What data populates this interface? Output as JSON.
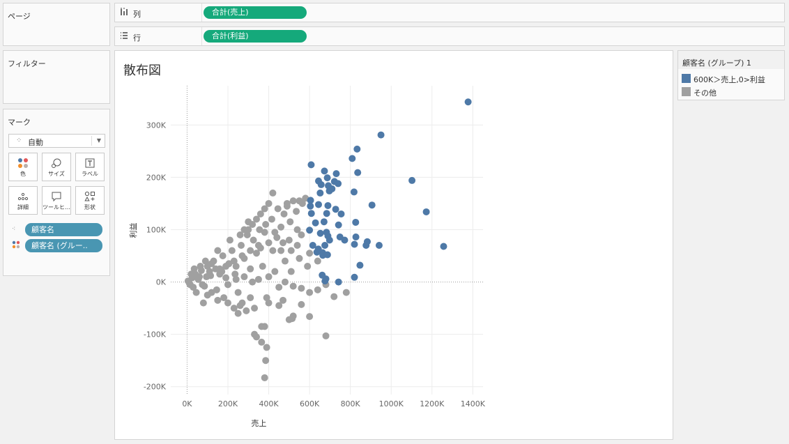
{
  "pages": {
    "title": "ページ"
  },
  "filters": {
    "title": "フィルター"
  },
  "marks": {
    "title": "マーク",
    "type": {
      "label": "自動",
      "icon": "mark-type-icon"
    },
    "buttons": [
      {
        "label": "色",
        "icon": "color-icon"
      },
      {
        "label": "サイズ",
        "icon": "size-icon"
      },
      {
        "label": "ラベル",
        "icon": "label-icon"
      },
      {
        "label": "詳細",
        "icon": "detail-icon"
      },
      {
        "label": "ツールヒ…",
        "icon": "tooltip-icon"
      },
      {
        "label": "形状",
        "icon": "shape-icon"
      }
    ],
    "fields": [
      {
        "label": "顧客名",
        "icon": "detail-icon"
      },
      {
        "label": "顧客名 (グルー..",
        "icon": "color-icon"
      }
    ]
  },
  "shelves": {
    "columns": {
      "label": "列",
      "icon": "columns-icon",
      "pill": "合計(売上)"
    },
    "rows": {
      "label": "行",
      "icon": "rows-icon",
      "pill": "合計(利益)"
    }
  },
  "sheet": {
    "title": "散布図"
  },
  "legend": {
    "title": "顧客名 (グループ) 1",
    "items": [
      {
        "label": "600K＞売上,0>利益",
        "color": "#4e79a7"
      },
      {
        "label": "その他",
        "color": "#a0a0a0"
      }
    ]
  },
  "colors": {
    "accent": "#15a97b",
    "field_pill": "#4996b2",
    "group_blue": "#4e79a7",
    "group_gray": "#a0a0a0"
  },
  "chart_data": {
    "type": "scatter",
    "xlabel": "売上",
    "ylabel": "利益",
    "xlim": [
      -80000,
      1450000
    ],
    "ylim": [
      -215000,
      375000
    ],
    "x_ticks": [
      "0K",
      "200K",
      "400K",
      "600K",
      "800K",
      "1000K",
      "1200K",
      "1400K"
    ],
    "y_ticks": [
      "300K",
      "200K",
      "100K",
      "0K",
      "-100K",
      "-200K"
    ],
    "grid": true,
    "series": [
      {
        "name": "600K＞売上,0>利益",
        "color": "#4e79a7",
        "points": [
          [
            1377000,
            344000
          ],
          [
            950000,
            281000
          ],
          [
            1102000,
            194000
          ],
          [
            1172000,
            134000
          ],
          [
            1257000,
            68000
          ],
          [
            833000,
            254000
          ],
          [
            809000,
            236000
          ],
          [
            836000,
            209000
          ],
          [
            608000,
            224000
          ],
          [
            673000,
            212000
          ],
          [
            731000,
            207000
          ],
          [
            687000,
            199000
          ],
          [
            644000,
            193000
          ],
          [
            657000,
            186000
          ],
          [
            722000,
            192000
          ],
          [
            692000,
            184000
          ],
          [
            740000,
            188000
          ],
          [
            710000,
            178000
          ],
          [
            697000,
            174000
          ],
          [
            818000,
            172000
          ],
          [
            652000,
            170000
          ],
          [
            605000,
            156000
          ],
          [
            644000,
            148000
          ],
          [
            604000,
            145000
          ],
          [
            690000,
            146000
          ],
          [
            728000,
            139000
          ],
          [
            906000,
            147000
          ],
          [
            609000,
            131000
          ],
          [
            684000,
            131000
          ],
          [
            755000,
            130000
          ],
          [
            671000,
            115000
          ],
          [
            629000,
            113000
          ],
          [
            742000,
            109000
          ],
          [
            826000,
            114000
          ],
          [
            600000,
            99000
          ],
          [
            683000,
            95000
          ],
          [
            653000,
            93000
          ],
          [
            690000,
            88000
          ],
          [
            749000,
            86000
          ],
          [
            827000,
            86000
          ],
          [
            698000,
            80000
          ],
          [
            772000,
            80000
          ],
          [
            883000,
            77000
          ],
          [
            616000,
            70000
          ],
          [
            675000,
            70000
          ],
          [
            820000,
            72000
          ],
          [
            941000,
            70000
          ],
          [
            877000,
            70000
          ],
          [
            643000,
            63000
          ],
          [
            664000,
            56000
          ],
          [
            636000,
            57000
          ],
          [
            665000,
            51000
          ],
          [
            688000,
            52000
          ],
          [
            847000,
            32000
          ],
          [
            662000,
            13000
          ],
          [
            680000,
            6000
          ],
          [
            676000,
            2000
          ],
          [
            742000,
            0
          ],
          [
            820000,
            9000
          ]
        ]
      },
      {
        "name": "その他",
        "color": "#a0a0a0",
        "points": [
          [
            5000,
            2000
          ],
          [
            12000,
            -3000
          ],
          [
            25000,
            8000
          ],
          [
            40000,
            15000
          ],
          [
            55000,
            5000
          ],
          [
            70000,
            22000
          ],
          [
            85000,
            -8000
          ],
          [
            100000,
            30000
          ],
          [
            115000,
            12000
          ],
          [
            130000,
            40000
          ],
          [
            145000,
            -15000
          ],
          [
            160000,
            25000
          ],
          [
            175000,
            50000
          ],
          [
            190000,
            8000
          ],
          [
            205000,
            35000
          ],
          [
            220000,
            60000
          ],
          [
            235000,
            15000
          ],
          [
            250000,
            -20000
          ],
          [
            265000,
            70000
          ],
          [
            280000,
            45000
          ],
          [
            295000,
            90000
          ],
          [
            310000,
            25000
          ],
          [
            325000,
            80000
          ],
          [
            340000,
            55000
          ],
          [
            355000,
            100000
          ],
          [
            370000,
            30000
          ],
          [
            385000,
            110000
          ],
          [
            400000,
            75000
          ],
          [
            415000,
            120000
          ],
          [
            430000,
            95000
          ],
          [
            445000,
            140000
          ],
          [
            460000,
            105000
          ],
          [
            475000,
            130000
          ],
          [
            490000,
            150000
          ],
          [
            505000,
            115000
          ],
          [
            520000,
            155000
          ],
          [
            535000,
            135000
          ],
          [
            550000,
            155000
          ],
          [
            565000,
            150000
          ],
          [
            580000,
            160000
          ],
          [
            420000,
            170000
          ],
          [
            490000,
            145000
          ],
          [
            30000,
            -10000
          ],
          [
            60000,
            10000
          ],
          [
            90000,
            40000
          ],
          [
            120000,
            -20000
          ],
          [
            150000,
            60000
          ],
          [
            180000,
            -30000
          ],
          [
            210000,
            80000
          ],
          [
            240000,
            30000
          ],
          [
            270000,
            -40000
          ],
          [
            300000,
            100000
          ],
          [
            330000,
            -50000
          ],
          [
            360000,
            65000
          ],
          [
            390000,
            -30000
          ],
          [
            420000,
            60000
          ],
          [
            450000,
            -10000
          ],
          [
            480000,
            40000
          ],
          [
            510000,
            20000
          ],
          [
            540000,
            70000
          ],
          [
            330000,
            -100000
          ],
          [
            340000,
            -105000
          ],
          [
            365000,
            -85000
          ],
          [
            380000,
            -85000
          ],
          [
            365000,
            -115000
          ],
          [
            390000,
            -125000
          ],
          [
            385000,
            -150000
          ],
          [
            380000,
            -183000
          ],
          [
            680000,
            -103000
          ],
          [
            520000,
            -65000
          ],
          [
            500000,
            -72000
          ],
          [
            515000,
            -70000
          ],
          [
            560000,
            -43000
          ],
          [
            600000,
            -66000
          ],
          [
            720000,
            -28000
          ],
          [
            780000,
            -20000
          ],
          [
            450000,
            -45000
          ],
          [
            470000,
            -35000
          ],
          [
            400000,
            -40000
          ],
          [
            250000,
            -60000
          ],
          [
            260000,
            -45000
          ],
          [
            230000,
            -50000
          ],
          [
            200000,
            -40000
          ],
          [
            290000,
            -55000
          ],
          [
            310000,
            -30000
          ],
          [
            150000,
            -35000
          ],
          [
            100000,
            -25000
          ],
          [
            80000,
            -40000
          ],
          [
            680000,
            -5000
          ],
          [
            640000,
            -15000
          ],
          [
            600000,
            -20000
          ],
          [
            560000,
            -12000
          ],
          [
            520000,
            -8000
          ],
          [
            480000,
            0
          ],
          [
            640000,
            40000
          ],
          [
            600000,
            55000
          ],
          [
            560000,
            90000
          ],
          [
            540000,
            100000
          ],
          [
            500000,
            80000
          ],
          [
            460000,
            60000
          ],
          [
            430000,
            20000
          ],
          [
            400000,
            10000
          ],
          [
            350000,
            5000
          ],
          [
            320000,
            0
          ],
          [
            280000,
            10000
          ],
          [
            240000,
            5000
          ],
          [
            200000,
            -5000
          ],
          [
            160000,
            15000
          ],
          [
            140000,
            25000
          ],
          [
            120000,
            35000
          ],
          [
            110000,
            20000
          ],
          [
            95000,
            10000
          ],
          [
            75000,
            -5000
          ],
          [
            65000,
            30000
          ],
          [
            45000,
            -20000
          ],
          [
            35000,
            25000
          ],
          [
            20000,
            15000
          ],
          [
            15000,
            -5000
          ],
          [
            360000,
            130000
          ],
          [
            380000,
            140000
          ],
          [
            400000,
            150000
          ],
          [
            340000,
            120000
          ],
          [
            320000,
            110000
          ],
          [
            300000,
            115000
          ],
          [
            280000,
            100000
          ],
          [
            260000,
            90000
          ],
          [
            380000,
            95000
          ],
          [
            350000,
            70000
          ],
          [
            310000,
            60000
          ],
          [
            270000,
            50000
          ],
          [
            230000,
            40000
          ],
          [
            190000,
            30000
          ],
          [
            170000,
            20000
          ],
          [
            440000,
            85000
          ],
          [
            470000,
            75000
          ],
          [
            510000,
            60000
          ],
          [
            550000,
            45000
          ],
          [
            590000,
            30000
          ]
        ]
      }
    ]
  }
}
